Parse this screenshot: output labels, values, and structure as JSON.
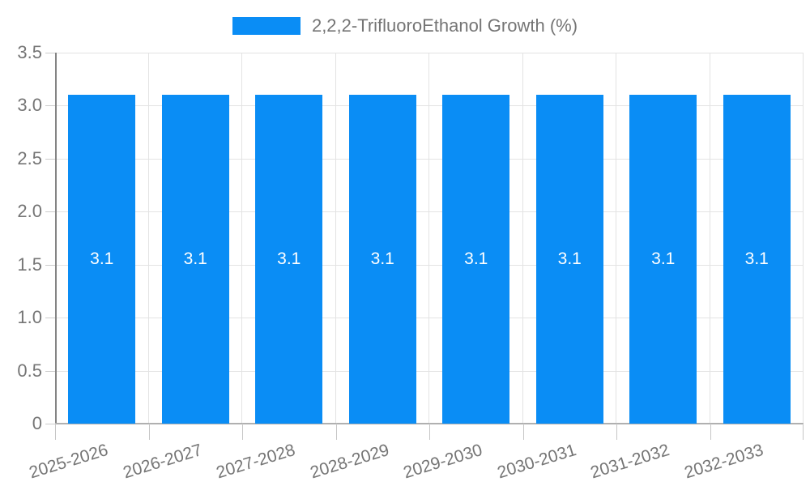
{
  "legend": {
    "label": "2,2,2-TrifluoroEthanol Growth (%)"
  },
  "colors": {
    "bar": "#0a8df5",
    "grid": "#e3e3e3",
    "baseline": "#b0b0b0",
    "y_axis_line": "#848484",
    "tick": "#cccccc",
    "axis_label": "#757575",
    "bar_label": "#ffffff"
  },
  "chart_data": {
    "type": "bar",
    "title": "",
    "legend_entries": [
      "2,2,2-TrifluoroEthanol Growth (%)"
    ],
    "legend_position": "top-center",
    "categories": [
      "2025-2026",
      "2026-2027",
      "2027-2028",
      "2028-2029",
      "2029-2030",
      "2030-2031",
      "2031-2032",
      "2032-2033"
    ],
    "values": [
      3.1,
      3.1,
      3.1,
      3.1,
      3.1,
      3.1,
      3.1,
      3.1
    ],
    "bar_value_labels": [
      "3.1",
      "3.1",
      "3.1",
      "3.1",
      "3.1",
      "3.1",
      "3.1",
      "3.1"
    ],
    "xlabel": "",
    "ylabel": "",
    "ylim": [
      0,
      3.5
    ],
    "yticks": [
      0,
      0.5,
      1.0,
      1.5,
      2.0,
      2.5,
      3.0,
      3.5
    ],
    "ytick_labels": [
      "0",
      "0.5",
      "1.0",
      "1.5",
      "2.0",
      "2.5",
      "3.0",
      "3.5"
    ],
    "grid": "on"
  }
}
